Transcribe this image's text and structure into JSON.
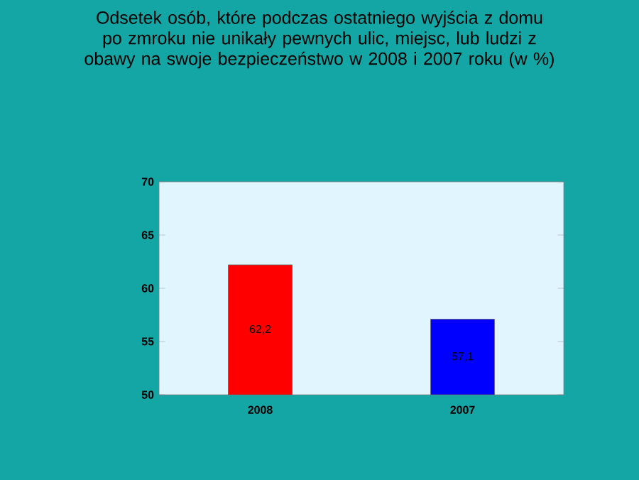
{
  "chart_data": {
    "type": "bar",
    "title": "Odsetek osób, które podczas ostatniego wyjścia z domu po zmroku nie unikały pewnych ulic, miejsc, lub ludzi z obawy na swoje bezpieczeństwo w 2008 i 2007 roku (w %)",
    "categories": [
      "2008",
      "2007"
    ],
    "values": [
      62.2,
      57.1
    ],
    "colors": [
      "#ff0000",
      "#0000ff"
    ],
    "value_labels": [
      "62,2",
      "57,1"
    ],
    "ylim": [
      50,
      70
    ],
    "yticks": [
      50,
      55,
      60,
      65,
      70
    ]
  }
}
